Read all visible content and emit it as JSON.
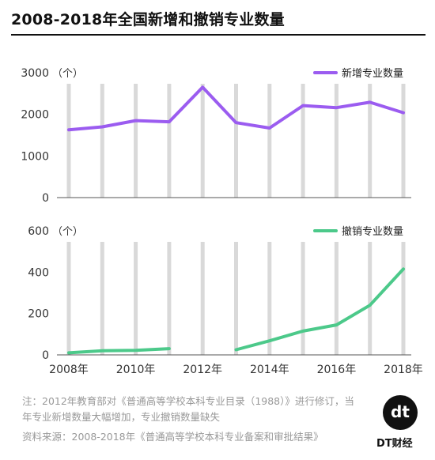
{
  "title": "2008-2018年全国新增和撤销专业数量",
  "note": "注：2012年教育部对《普通高等学校本科专业目录（1988）》进行修订，当年专业新增数量大幅增加，专业撤销数量缺失",
  "source": "资料来源：2008-2018年《普通高等学校本科专业备案和审批结果》",
  "brand": {
    "logo_glyph": "dt",
    "name": "DT财经"
  },
  "colors": {
    "new": "#9b5cf0",
    "removed": "#4cc98a",
    "grid": "#d9d9d9"
  },
  "chart_data": [
    {
      "type": "line",
      "unit_label": "（个）",
      "x": [
        2008,
        2009,
        2010,
        2011,
        2012,
        2013,
        2014,
        2015,
        2016,
        2017,
        2018
      ],
      "series": [
        {
          "name": "新增专业数量",
          "values": [
            1630,
            1700,
            1850,
            1820,
            2650,
            1800,
            1670,
            2210,
            2160,
            2290,
            2040
          ]
        }
      ],
      "yticks": [
        "0",
        "1000",
        "2000",
        "3000"
      ],
      "ylim": [
        0,
        3000
      ],
      "legend": "top-right",
      "grid": "vertical"
    },
    {
      "type": "line",
      "unit_label": "（个）",
      "x": [
        2008,
        2009,
        2010,
        2011,
        2012,
        2013,
        2014,
        2015,
        2016,
        2017,
        2018
      ],
      "xticks": [
        "2008年",
        "2010年",
        "2012年",
        "2014年",
        "2016年",
        "2018年"
      ],
      "series": [
        {
          "name": "撤销专业数量",
          "values": [
            10,
            20,
            22,
            30,
            null,
            25,
            68,
            115,
            145,
            240,
            415
          ]
        }
      ],
      "yticks": [
        "0",
        "200",
        "400",
        "600"
      ],
      "ylim": [
        0,
        600
      ],
      "legend": "top-right",
      "grid": "vertical"
    }
  ]
}
